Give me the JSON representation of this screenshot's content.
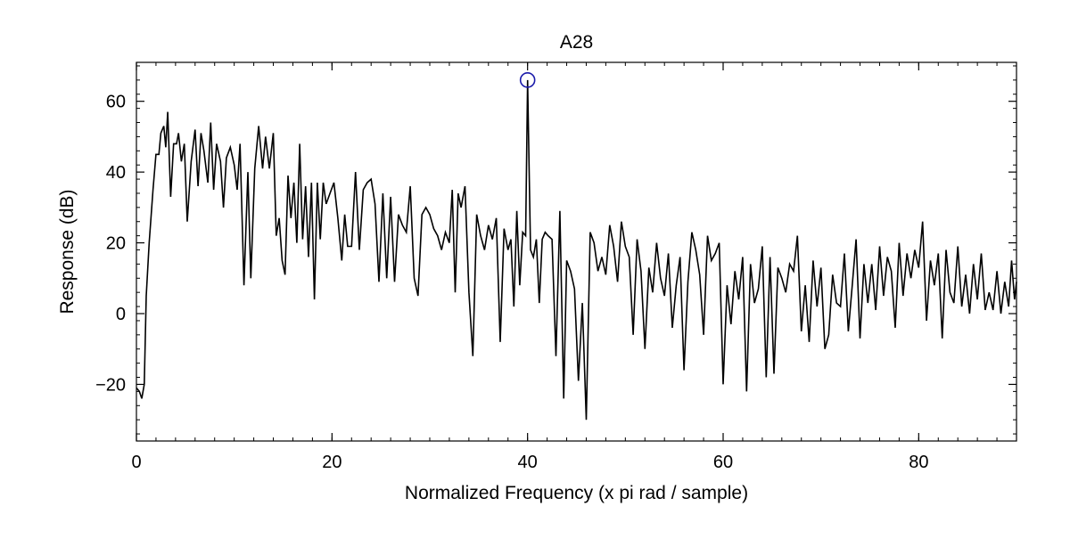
{
  "chart_data": {
    "type": "line",
    "title": "A28",
    "xlabel": "Normalized Frequency (x pi rad / sample)",
    "ylabel": "Response (dB)",
    "xlim": [
      0,
      90
    ],
    "ylim": [
      -36,
      71
    ],
    "grid": false,
    "x_ticks": [
      0,
      20,
      40,
      60,
      80
    ],
    "y_ticks": [
      -20,
      0,
      20,
      40,
      60
    ],
    "colors": {
      "line": "#000000",
      "marker": "#1a1aaa"
    },
    "peak_marker": {
      "x": 40,
      "y": 66,
      "shape": "circle"
    },
    "series": [
      {
        "points": [
          [
            0.0,
            -21
          ],
          [
            0.3,
            -22
          ],
          [
            0.55,
            -24
          ],
          [
            0.8,
            -20
          ],
          [
            1.0,
            5
          ],
          [
            1.3,
            20
          ],
          [
            1.7,
            35
          ],
          [
            2.0,
            45
          ],
          [
            2.3,
            45
          ],
          [
            2.5,
            51
          ],
          [
            2.8,
            53
          ],
          [
            3.0,
            47
          ],
          [
            3.2,
            57
          ],
          [
            3.5,
            33
          ],
          [
            3.8,
            48
          ],
          [
            4.1,
            48
          ],
          [
            4.3,
            51
          ],
          [
            4.6,
            43
          ],
          [
            4.9,
            48
          ],
          [
            5.2,
            26
          ],
          [
            5.6,
            43
          ],
          [
            6.0,
            52
          ],
          [
            6.3,
            36
          ],
          [
            6.6,
            51
          ],
          [
            6.9,
            46
          ],
          [
            7.3,
            37
          ],
          [
            7.6,
            54
          ],
          [
            7.9,
            35
          ],
          [
            8.2,
            48
          ],
          [
            8.6,
            43
          ],
          [
            8.9,
            30
          ],
          [
            9.2,
            44
          ],
          [
            9.6,
            47
          ],
          [
            10.0,
            42
          ],
          [
            10.3,
            35
          ],
          [
            10.6,
            48
          ],
          [
            11.0,
            8
          ],
          [
            11.4,
            40
          ],
          [
            11.7,
            10
          ],
          [
            12.1,
            41
          ],
          [
            12.5,
            53
          ],
          [
            12.9,
            41
          ],
          [
            13.2,
            50
          ],
          [
            13.6,
            41
          ],
          [
            14.0,
            51
          ],
          [
            14.3,
            22
          ],
          [
            14.6,
            27
          ],
          [
            14.9,
            15
          ],
          [
            15.2,
            11
          ],
          [
            15.5,
            39
          ],
          [
            15.8,
            27
          ],
          [
            16.1,
            37
          ],
          [
            16.4,
            20
          ],
          [
            16.7,
            48
          ],
          [
            17.0,
            21
          ],
          [
            17.3,
            36
          ],
          [
            17.6,
            16
          ],
          [
            17.9,
            37
          ],
          [
            18.2,
            4
          ],
          [
            18.5,
            37
          ],
          [
            18.8,
            21
          ],
          [
            19.1,
            37
          ],
          [
            19.4,
            31
          ],
          [
            19.8,
            34
          ],
          [
            20.2,
            37
          ],
          [
            20.6,
            27
          ],
          [
            21.0,
            15
          ],
          [
            21.3,
            28
          ],
          [
            21.6,
            19
          ],
          [
            22.0,
            19
          ],
          [
            22.4,
            40
          ],
          [
            22.8,
            18
          ],
          [
            23.2,
            35
          ],
          [
            23.6,
            37
          ],
          [
            24.0,
            38
          ],
          [
            24.4,
            31
          ],
          [
            24.8,
            9
          ],
          [
            25.2,
            34
          ],
          [
            25.6,
            10
          ],
          [
            26.0,
            33
          ],
          [
            26.4,
            9
          ],
          [
            26.8,
            28
          ],
          [
            27.2,
            25
          ],
          [
            27.6,
            23
          ],
          [
            28.0,
            36
          ],
          [
            28.4,
            10
          ],
          [
            28.8,
            5
          ],
          [
            29.2,
            28
          ],
          [
            29.6,
            30
          ],
          [
            30.0,
            28
          ],
          [
            30.4,
            24
          ],
          [
            30.8,
            22
          ],
          [
            31.2,
            18
          ],
          [
            31.6,
            23
          ],
          [
            32.0,
            20
          ],
          [
            32.3,
            35
          ],
          [
            32.6,
            6
          ],
          [
            32.9,
            34
          ],
          [
            33.2,
            30
          ],
          [
            33.6,
            36
          ],
          [
            34.0,
            6
          ],
          [
            34.4,
            -12
          ],
          [
            34.8,
            28
          ],
          [
            35.2,
            22
          ],
          [
            35.6,
            18
          ],
          [
            36.0,
            25
          ],
          [
            36.4,
            21
          ],
          [
            36.8,
            27
          ],
          [
            37.2,
            -8
          ],
          [
            37.6,
            24
          ],
          [
            38.0,
            18
          ],
          [
            38.3,
            21
          ],
          [
            38.6,
            2
          ],
          [
            38.9,
            29
          ],
          [
            39.2,
            8
          ],
          [
            39.5,
            23
          ],
          [
            39.8,
            22
          ],
          [
            40.0,
            66
          ],
          [
            40.3,
            18
          ],
          [
            40.6,
            16
          ],
          [
            40.9,
            21
          ],
          [
            41.2,
            3
          ],
          [
            41.5,
            21
          ],
          [
            41.8,
            23
          ],
          [
            42.1,
            22
          ],
          [
            42.5,
            21
          ],
          [
            42.9,
            -12
          ],
          [
            43.3,
            29
          ],
          [
            43.7,
            -24
          ],
          [
            44.0,
            15
          ],
          [
            44.4,
            12
          ],
          [
            44.8,
            7
          ],
          [
            45.2,
            -19
          ],
          [
            45.6,
            3
          ],
          [
            46.0,
            -30
          ],
          [
            46.4,
            23
          ],
          [
            46.8,
            20
          ],
          [
            47.2,
            12
          ],
          [
            47.6,
            16
          ],
          [
            48.0,
            11
          ],
          [
            48.4,
            25
          ],
          [
            48.8,
            19
          ],
          [
            49.2,
            9
          ],
          [
            49.6,
            26
          ],
          [
            50.0,
            19
          ],
          [
            50.4,
            16
          ],
          [
            50.8,
            -6
          ],
          [
            51.2,
            21
          ],
          [
            51.6,
            12
          ],
          [
            52.0,
            -10
          ],
          [
            52.4,
            13
          ],
          [
            52.8,
            6
          ],
          [
            53.2,
            20
          ],
          [
            53.6,
            10
          ],
          [
            54.0,
            5
          ],
          [
            54.4,
            17
          ],
          [
            54.8,
            -4
          ],
          [
            55.2,
            8
          ],
          [
            55.6,
            16
          ],
          [
            56.0,
            -16
          ],
          [
            56.4,
            9
          ],
          [
            56.8,
            23
          ],
          [
            57.2,
            18
          ],
          [
            57.6,
            11
          ],
          [
            58.0,
            -6
          ],
          [
            58.4,
            22
          ],
          [
            58.8,
            15
          ],
          [
            59.2,
            17
          ],
          [
            59.6,
            20
          ],
          [
            60.0,
            -20
          ],
          [
            60.4,
            8
          ],
          [
            60.8,
            -3
          ],
          [
            61.2,
            12
          ],
          [
            61.6,
            4
          ],
          [
            62.0,
            16
          ],
          [
            62.4,
            -22
          ],
          [
            62.8,
            14
          ],
          [
            63.2,
            3
          ],
          [
            63.6,
            7
          ],
          [
            64.0,
            19
          ],
          [
            64.4,
            -18
          ],
          [
            64.8,
            16
          ],
          [
            65.2,
            -17
          ],
          [
            65.6,
            13
          ],
          [
            66.0,
            10
          ],
          [
            66.4,
            6
          ],
          [
            66.8,
            14
          ],
          [
            67.2,
            12
          ],
          [
            67.6,
            22
          ],
          [
            68.0,
            -5
          ],
          [
            68.4,
            8
          ],
          [
            68.8,
            -8
          ],
          [
            69.2,
            15
          ],
          [
            69.6,
            2
          ],
          [
            70.0,
            13
          ],
          [
            70.4,
            -10
          ],
          [
            70.8,
            -6
          ],
          [
            71.2,
            11
          ],
          [
            71.6,
            3
          ],
          [
            72.0,
            2
          ],
          [
            72.4,
            17
          ],
          [
            72.8,
            -5
          ],
          [
            73.2,
            8
          ],
          [
            73.6,
            21
          ],
          [
            74.0,
            -7
          ],
          [
            74.4,
            14
          ],
          [
            74.8,
            3
          ],
          [
            75.2,
            14
          ],
          [
            75.6,
            1
          ],
          [
            76.0,
            19
          ],
          [
            76.4,
            5
          ],
          [
            76.8,
            16
          ],
          [
            77.2,
            12
          ],
          [
            77.6,
            -4
          ],
          [
            78.0,
            20
          ],
          [
            78.4,
            5
          ],
          [
            78.8,
            17
          ],
          [
            79.2,
            10
          ],
          [
            79.6,
            18
          ],
          [
            80.0,
            13
          ],
          [
            80.4,
            26
          ],
          [
            80.8,
            -2
          ],
          [
            81.2,
            15
          ],
          [
            81.6,
            8
          ],
          [
            82.0,
            17
          ],
          [
            82.4,
            -7
          ],
          [
            82.8,
            18
          ],
          [
            83.2,
            6
          ],
          [
            83.6,
            3
          ],
          [
            84.0,
            19
          ],
          [
            84.4,
            2
          ],
          [
            84.8,
            11
          ],
          [
            85.2,
            0
          ],
          [
            85.6,
            14
          ],
          [
            86.0,
            4
          ],
          [
            86.4,
            17
          ],
          [
            86.8,
            1
          ],
          [
            87.2,
            6
          ],
          [
            87.6,
            1
          ],
          [
            88.0,
            12
          ],
          [
            88.4,
            0
          ],
          [
            88.8,
            9
          ],
          [
            89.2,
            2
          ],
          [
            89.5,
            15
          ],
          [
            89.8,
            4
          ],
          [
            90.0,
            9
          ]
        ]
      }
    ]
  }
}
